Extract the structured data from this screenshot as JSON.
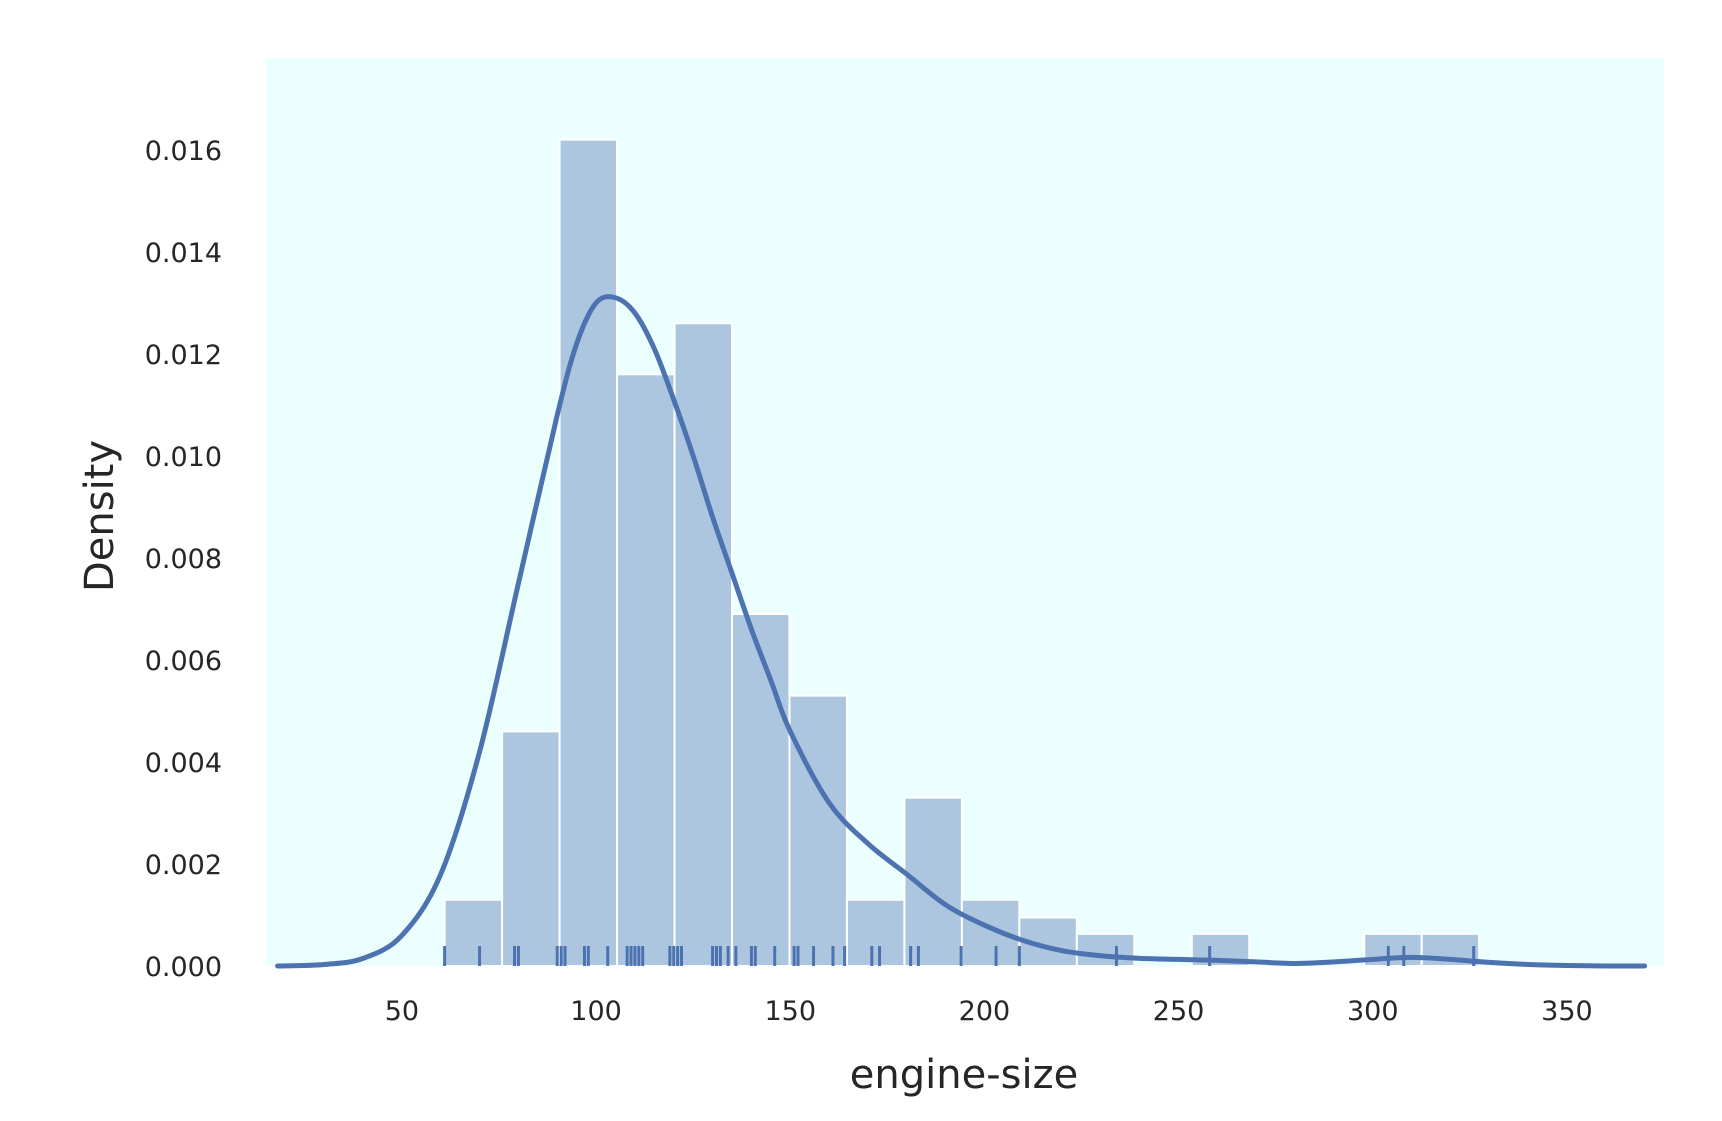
{
  "chart_data": {
    "type": "bar",
    "subtype": "histogram with kde and rug",
    "xlabel": "engine-size",
    "ylabel": "Density",
    "xlim": [
      15,
      375
    ],
    "ylim": [
      0,
      0.0178
    ],
    "grid": false,
    "colors": {
      "plot_background": "#ecffff",
      "bar_fill": "#adc6e0",
      "bar_edge": "#ffffff",
      "kde_line": "#4c72b0",
      "rug": "#4c72b0",
      "text": "#262626"
    },
    "x_ticks": [
      "50",
      "100",
      "150",
      "200",
      "250",
      "300",
      "350"
    ],
    "y_ticks": [
      "0.000",
      "0.002",
      "0.004",
      "0.006",
      "0.008",
      "0.010",
      "0.012",
      "0.014",
      "0.016"
    ],
    "histogram": {
      "bin_edges": [
        61,
        75.8,
        90.6,
        105.4,
        120.2,
        135,
        149.8,
        164.6,
        179.4,
        194.2,
        209,
        223.8,
        238.6,
        253.4,
        268.2,
        283,
        297.8,
        312.6,
        327.4
      ],
      "density": [
        0.0013,
        0.0046,
        0.0162,
        0.0116,
        0.0126,
        0.0069,
        0.0053,
        0.0013,
        0.0033,
        0.0013,
        0.00095,
        0.00063,
        0,
        0.00063,
        0,
        0,
        0.00063,
        0.00063
      ]
    },
    "kde": {
      "x": [
        18,
        30,
        40,
        50,
        60,
        70,
        80,
        90,
        95,
        100,
        105,
        110,
        115,
        120,
        125,
        130,
        135,
        140,
        145,
        150,
        160,
        170,
        180,
        190,
        200,
        210,
        220,
        230,
        240,
        250,
        260,
        270,
        280,
        290,
        300,
        310,
        320,
        330,
        340,
        350,
        360,
        370
      ],
      "y": [
        0,
        3e-05,
        0.00015,
        0.0006,
        0.0018,
        0.0042,
        0.0075,
        0.0108,
        0.0122,
        0.013,
        0.0131,
        0.0128,
        0.0121,
        0.0111,
        0.01,
        0.0088,
        0.0077,
        0.0066,
        0.0056,
        0.0046,
        0.0032,
        0.0024,
        0.0018,
        0.0012,
        0.0008,
        0.0005,
        0.0003,
        0.0002,
        0.00015,
        0.00013,
        0.00011,
        8e-05,
        5e-05,
        8e-05,
        0.00013,
        0.00017,
        0.00013,
        7e-05,
        3e-05,
        1e-05,
        0,
        0
      ]
    },
    "rug": [
      61,
      70,
      79,
      80,
      90,
      91,
      92,
      97,
      98,
      103,
      108,
      109,
      110,
      111,
      112,
      119,
      120,
      121,
      122,
      130,
      131,
      132,
      134,
      136,
      140,
      141,
      146,
      151,
      152,
      156,
      161,
      164,
      171,
      173,
      181,
      183,
      194,
      203,
      209,
      234,
      258,
      304,
      308,
      326
    ]
  }
}
